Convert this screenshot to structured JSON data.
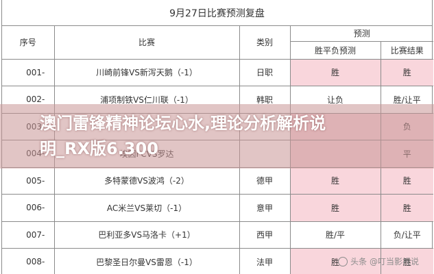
{
  "sheet": {
    "title": "9月27日比赛预测复盘",
    "headers": {
      "no": "序号",
      "match": "比赛",
      "category": "类别",
      "prediction_group": "预测",
      "pred_result": "胜平负预测",
      "actual_result": "比赛结果"
    },
    "rows": [
      {
        "no": "001-",
        "match": "川崎前锋VS新泻天鹅（-1）",
        "category": "日职",
        "pred": "胜",
        "result": "胜",
        "pred_hl": true,
        "result_hl": true
      },
      {
        "no": "002-",
        "match": "浦项制铁VS仁川联（-1）",
        "category": "韩职",
        "pred": "让负",
        "result": "胜/让平",
        "pred_hl": false,
        "result_hl": false
      },
      {
        "no": "003-",
        "match": "",
        "category": "",
        "pred": "",
        "result": "负",
        "pred_hl": true,
        "result_hl": true
      },
      {
        "no": "004-",
        "match": "埃因FCVS罗达",
        "category": "",
        "pred": "",
        "result": "平",
        "pred_hl": true,
        "result_hl": true
      },
      {
        "no": "005-",
        "match": "多特蒙德VS波鸿（-2）",
        "category": "德甲",
        "pred": "胜",
        "result": "胜",
        "pred_hl": true,
        "result_hl": true
      },
      {
        "no": "006-",
        "match": "AC米兰VS莱切（-1）",
        "category": "意甲",
        "pred": "胜",
        "result": "胜",
        "pred_hl": true,
        "result_hl": true
      },
      {
        "no": "007-",
        "match": "巴利亚多VS马洛卡（+1）",
        "category": "西甲",
        "pred": "胜/平",
        "result": "负/让平",
        "pred_hl": false,
        "result_hl": false
      },
      {
        "no": "008-",
        "match": "巴黎圣日尔曼VS雷恩（-1）",
        "category": "法甲",
        "pred": "胜",
        "result": "胜",
        "pred_hl": true,
        "result_hl": true
      }
    ]
  },
  "banner": {
    "line1": "澳门雷锋精神论坛心水,理论分析解析说",
    "line2": "明_RX版6.300"
  },
  "watermark": {
    "text": "头条 @叮当影视说"
  },
  "colors": {
    "highlight": "#f9d6dc",
    "banner": "#c89696",
    "border": "#8a8a8a"
  }
}
